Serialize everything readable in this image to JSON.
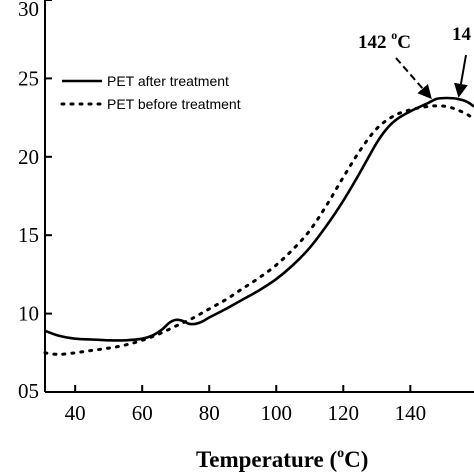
{
  "chart_data": {
    "type": "line",
    "xlabel": "Temperature (°C)",
    "xlabel_main": "Temperature (",
    "xlabel_sup": "o",
    "xlabel_tail": "C)",
    "x_ticks": [
      "40",
      "60",
      "80",
      "100",
      "120",
      "140",
      "1"
    ],
    "y_ticks": [
      "05",
      "10",
      "15",
      "20",
      "25",
      "30"
    ],
    "xlim": [
      31,
      159
    ],
    "ylim": [
      5,
      30
    ],
    "legend_position": "top-left",
    "series": [
      {
        "name": "PET after treatment",
        "style": "solid",
        "x": [
          31,
          35,
          40,
          45,
          50,
          55,
          60,
          63,
          66,
          68,
          70,
          72,
          74,
          76,
          78,
          80,
          85,
          90,
          95,
          100,
          105,
          110,
          115,
          120,
          125,
          130,
          133,
          136,
          140,
          145,
          148,
          151,
          154,
          157,
          159
        ],
        "y": [
          8.9,
          8.6,
          8.4,
          8.35,
          8.3,
          8.3,
          8.4,
          8.6,
          9.0,
          9.4,
          9.6,
          9.55,
          9.35,
          9.35,
          9.5,
          9.75,
          10.3,
          10.9,
          11.5,
          12.2,
          13.1,
          14.2,
          15.6,
          17.2,
          19.0,
          20.9,
          21.8,
          22.4,
          22.9,
          23.4,
          23.7,
          23.75,
          23.7,
          23.5,
          23.2
        ]
      },
      {
        "name": "PET before treatment",
        "style": "dotted",
        "x": [
          31,
          35,
          40,
          45,
          50,
          55,
          60,
          65,
          70,
          75,
          80,
          85,
          90,
          95,
          100,
          105,
          110,
          115,
          120,
          125,
          130,
          135,
          140,
          145,
          148,
          151,
          154,
          157,
          159
        ],
        "y": [
          7.5,
          7.4,
          7.5,
          7.65,
          7.8,
          8.0,
          8.3,
          8.7,
          9.2,
          9.7,
          10.3,
          10.9,
          11.6,
          12.3,
          13.1,
          14.1,
          15.3,
          16.9,
          18.7,
          20.4,
          21.8,
          22.6,
          23.0,
          23.2,
          23.25,
          23.2,
          23.0,
          22.7,
          22.4
        ]
      }
    ],
    "annotations": [
      {
        "label": "142 oC",
        "main": "142 ",
        "sup": "o",
        "tail": "C",
        "style": "dashed-arrow"
      },
      {
        "label": "14",
        "main": "14",
        "style": "solid-arrow"
      }
    ]
  }
}
